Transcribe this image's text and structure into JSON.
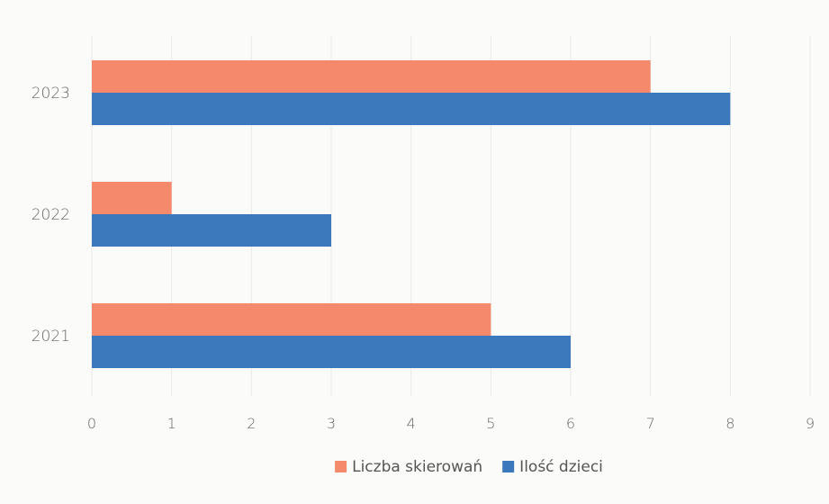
{
  "chart_data": {
    "type": "bar",
    "orientation": "horizontal",
    "categories": [
      "2023",
      "2022",
      "2021"
    ],
    "series": [
      {
        "name": "Liczba skierowań",
        "values": [
          7,
          1,
          5
        ],
        "color": "#f4896b"
      },
      {
        "name": "Ilość dzieci",
        "values": [
          8,
          3,
          6
        ],
        "color": "#3b78bc"
      }
    ],
    "xlim": [
      0,
      9
    ],
    "x_ticks": [
      "0",
      "1",
      "2",
      "3",
      "4",
      "5",
      "6",
      "7",
      "8",
      "9"
    ],
    "grid": "vertical",
    "legend": {
      "position": "bottom-center"
    },
    "title": "",
    "xlabel": "",
    "ylabel": ""
  }
}
